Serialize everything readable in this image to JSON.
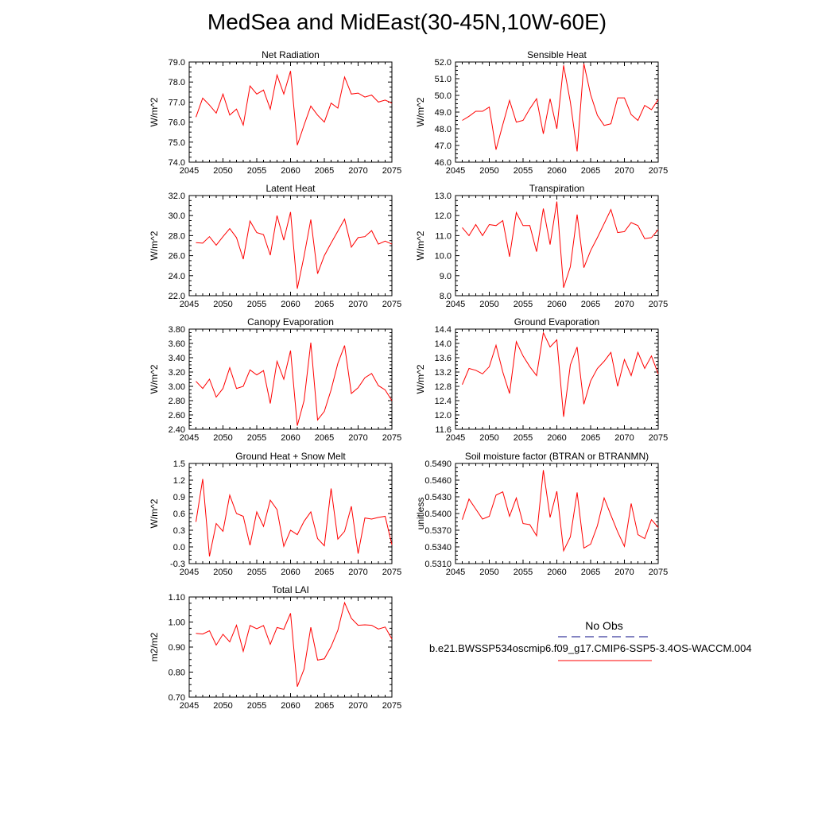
{
  "title": "MedSea and MidEast(30-45N,10W-60E)",
  "colors": {
    "series": "#ff0000",
    "obs": "#3b3b9e",
    "axis": "#000000"
  },
  "legend": {
    "obs_label": "No Obs",
    "case_label": "b.e21.BWSSP534oscmip6.f09_g17.CMIP6-SSP5-3.4OS-WACCM.004"
  },
  "chart_data": [
    {
      "type": "line",
      "title": "Net Radiation",
      "ylabel": "W/m^2",
      "xlim": [
        2045,
        2075
      ],
      "ylim": [
        74.0,
        79.0
      ],
      "xticks": [
        2045,
        2050,
        2055,
        2060,
        2065,
        2070,
        2075
      ],
      "yticks": [
        "74.0",
        "75.0",
        "76.0",
        "77.0",
        "78.0",
        "79.0"
      ],
      "x": [
        2046,
        2047,
        2048,
        2049,
        2050,
        2051,
        2052,
        2053,
        2054,
        2055,
        2056,
        2057,
        2058,
        2059,
        2060,
        2061,
        2062,
        2063,
        2064,
        2065,
        2066,
        2067,
        2068,
        2069,
        2070,
        2071,
        2072,
        2073,
        2074,
        2075
      ],
      "values": [
        76.25,
        77.2,
        76.85,
        76.45,
        77.4,
        76.35,
        76.65,
        75.85,
        77.8,
        77.4,
        77.6,
        76.65,
        78.35,
        77.4,
        78.55,
        74.85,
        75.85,
        76.8,
        76.35,
        76.0,
        76.95,
        76.7,
        78.25,
        77.4,
        77.45,
        77.25,
        77.35,
        77.0,
        77.1,
        76.95
      ]
    },
    {
      "type": "line",
      "title": "Sensible Heat",
      "ylabel": "W/m^2",
      "xlim": [
        2045,
        2075
      ],
      "ylim": [
        46.0,
        52.0
      ],
      "xticks": [
        2045,
        2050,
        2055,
        2060,
        2065,
        2070,
        2075
      ],
      "yticks": [
        "46.0",
        "47.0",
        "48.0",
        "49.0",
        "50.0",
        "51.0",
        "52.0"
      ],
      "x": [
        2046,
        2047,
        2048,
        2049,
        2050,
        2051,
        2052,
        2053,
        2054,
        2055,
        2056,
        2057,
        2058,
        2059,
        2060,
        2061,
        2062,
        2063,
        2064,
        2065,
        2066,
        2067,
        2068,
        2069,
        2070,
        2071,
        2072,
        2073,
        2074,
        2075
      ],
      "values": [
        48.5,
        48.75,
        49.05,
        49.05,
        49.3,
        46.75,
        48.25,
        49.7,
        48.4,
        48.5,
        49.2,
        49.8,
        47.7,
        49.8,
        48.0,
        51.8,
        49.6,
        46.65,
        51.9,
        50.05,
        48.8,
        48.2,
        48.3,
        49.85,
        49.85,
        48.85,
        48.5,
        49.4,
        49.15,
        49.75
      ]
    },
    {
      "type": "line",
      "title": "Latent Heat",
      "ylabel": "W/m^2",
      "xlim": [
        2045,
        2075
      ],
      "ylim": [
        22.0,
        32.0
      ],
      "xticks": [
        2045,
        2050,
        2055,
        2060,
        2065,
        2070,
        2075
      ],
      "yticks": [
        "22.0",
        "24.0",
        "26.0",
        "28.0",
        "30.0",
        "32.0"
      ],
      "x": [
        2046,
        2047,
        2048,
        2049,
        2050,
        2051,
        2052,
        2053,
        2054,
        2055,
        2056,
        2057,
        2058,
        2059,
        2060,
        2061,
        2062,
        2063,
        2064,
        2065,
        2066,
        2067,
        2068,
        2069,
        2070,
        2071,
        2072,
        2073,
        2074,
        2075
      ],
      "values": [
        27.3,
        27.25,
        27.9,
        27.05,
        27.9,
        28.7,
        27.8,
        25.65,
        29.45,
        28.3,
        28.1,
        26.05,
        30.0,
        27.55,
        30.35,
        22.7,
        25.95,
        29.6,
        24.2,
        26.0,
        27.25,
        28.45,
        29.65,
        26.85,
        27.8,
        27.9,
        28.5,
        27.15,
        27.45,
        27.15
      ]
    },
    {
      "type": "line",
      "title": "Transpiration",
      "ylabel": "W/m^2",
      "xlim": [
        2045,
        2075
      ],
      "ylim": [
        8.0,
        13.0
      ],
      "xticks": [
        2045,
        2050,
        2055,
        2060,
        2065,
        2070,
        2075
      ],
      "yticks": [
        "8.0",
        "9.0",
        "10.0",
        "11.0",
        "12.0",
        "13.0"
      ],
      "x": [
        2046,
        2047,
        2048,
        2049,
        2050,
        2051,
        2052,
        2053,
        2054,
        2055,
        2056,
        2057,
        2058,
        2059,
        2060,
        2061,
        2062,
        2063,
        2064,
        2065,
        2066,
        2067,
        2068,
        2069,
        2070,
        2071,
        2072,
        2073,
        2074,
        2075
      ],
      "values": [
        11.4,
        11.0,
        11.55,
        11.0,
        11.55,
        11.5,
        11.75,
        9.95,
        12.15,
        11.5,
        11.5,
        10.2,
        12.35,
        10.55,
        12.7,
        8.4,
        9.45,
        12.05,
        9.4,
        10.25,
        10.9,
        11.6,
        12.3,
        11.15,
        11.2,
        11.65,
        11.5,
        10.85,
        10.9,
        11.3
      ]
    },
    {
      "type": "line",
      "title": "Canopy Evaporation",
      "ylabel": "W/m^2",
      "xlim": [
        2045,
        2075
      ],
      "ylim": [
        2.4,
        3.8
      ],
      "xticks": [
        2045,
        2050,
        2055,
        2060,
        2065,
        2070,
        2075
      ],
      "yticks": [
        "2.40",
        "2.60",
        "2.80",
        "3.00",
        "3.20",
        "3.40",
        "3.60",
        "3.80"
      ],
      "x": [
        2046,
        2047,
        2048,
        2049,
        2050,
        2051,
        2052,
        2053,
        2054,
        2055,
        2056,
        2057,
        2058,
        2059,
        2060,
        2061,
        2062,
        2063,
        2064,
        2065,
        2066,
        2067,
        2068,
        2069,
        2070,
        2071,
        2072,
        2073,
        2074,
        2075
      ],
      "values": [
        3.07,
        2.97,
        3.1,
        2.85,
        2.97,
        3.26,
        2.97,
        3.0,
        3.23,
        3.16,
        3.22,
        2.76,
        3.35,
        3.1,
        3.5,
        2.45,
        2.8,
        3.61,
        2.53,
        2.65,
        2.95,
        3.32,
        3.57,
        2.9,
        2.98,
        3.12,
        3.18,
        3.01,
        2.95,
        2.8
      ]
    },
    {
      "type": "line",
      "title": "Ground Evaporation",
      "ylabel": "W/m^2",
      "xlim": [
        2045,
        2075
      ],
      "ylim": [
        11.6,
        14.4
      ],
      "xticks": [
        2045,
        2050,
        2055,
        2060,
        2065,
        2070,
        2075
      ],
      "yticks": [
        "11.6",
        "12.0",
        "12.4",
        "12.8",
        "13.2",
        "13.6",
        "14.0",
        "14.4"
      ],
      "x": [
        2046,
        2047,
        2048,
        2049,
        2050,
        2051,
        2052,
        2053,
        2054,
        2055,
        2056,
        2057,
        2058,
        2059,
        2060,
        2061,
        2062,
        2063,
        2064,
        2065,
        2066,
        2067,
        2068,
        2069,
        2070,
        2071,
        2072,
        2073,
        2074,
        2075
      ],
      "values": [
        12.85,
        13.3,
        13.25,
        13.15,
        13.35,
        13.95,
        13.2,
        12.6,
        14.05,
        13.65,
        13.35,
        13.1,
        14.3,
        13.9,
        14.1,
        11.95,
        13.4,
        13.9,
        12.3,
        12.95,
        13.3,
        13.5,
        13.75,
        12.8,
        13.55,
        13.1,
        13.75,
        13.3,
        13.65,
        13.15
      ]
    },
    {
      "type": "line",
      "title": "Ground Heat + Snow Melt",
      "ylabel": "W/m^2",
      "xlim": [
        2045,
        2075
      ],
      "ylim": [
        -0.3,
        1.5
      ],
      "xticks": [
        2045,
        2050,
        2055,
        2060,
        2065,
        2070,
        2075
      ],
      "yticks": [
        "-0.3",
        "0.0",
        "0.3",
        "0.6",
        "0.9",
        "1.2",
        "1.5"
      ],
      "x": [
        2046,
        2047,
        2048,
        2049,
        2050,
        2051,
        2052,
        2053,
        2054,
        2055,
        2056,
        2057,
        2058,
        2059,
        2060,
        2061,
        2062,
        2063,
        2064,
        2065,
        2066,
        2067,
        2068,
        2069,
        2070,
        2071,
        2072,
        2073,
        2074,
        2075
      ],
      "values": [
        0.45,
        1.22,
        -0.17,
        0.42,
        0.28,
        0.93,
        0.6,
        0.55,
        0.03,
        0.63,
        0.37,
        0.84,
        0.67,
        0.01,
        0.3,
        0.22,
        0.46,
        0.63,
        0.15,
        0.02,
        1.05,
        0.14,
        0.28,
        0.73,
        -0.12,
        0.52,
        0.5,
        0.53,
        0.55,
        0.04
      ]
    },
    {
      "type": "line",
      "title": "Soil moisture factor (BTRAN or BTRANMN)",
      "ylabel": "unitless",
      "xlim": [
        2045,
        2075
      ],
      "ylim": [
        0.531,
        0.549
      ],
      "xticks": [
        2045,
        2050,
        2055,
        2060,
        2065,
        2070,
        2075
      ],
      "yticks": [
        "0.5310",
        "0.5340",
        "0.5370",
        "0.5400",
        "0.5430",
        "0.5460",
        "0.5490"
      ],
      "x": [
        2046,
        2047,
        2048,
        2049,
        2050,
        2051,
        2052,
        2053,
        2054,
        2055,
        2056,
        2057,
        2058,
        2059,
        2060,
        2061,
        2062,
        2063,
        2064,
        2065,
        2066,
        2067,
        2068,
        2069,
        2070,
        2071,
        2072,
        2073,
        2074,
        2075
      ],
      "values": [
        0.5389,
        0.5426,
        0.5408,
        0.539,
        0.5395,
        0.5433,
        0.5439,
        0.5395,
        0.5428,
        0.5382,
        0.538,
        0.536,
        0.5478,
        0.5393,
        0.544,
        0.5333,
        0.5358,
        0.5438,
        0.5338,
        0.5345,
        0.5378,
        0.5428,
        0.5397,
        0.5367,
        0.5341,
        0.5418,
        0.5362,
        0.5355,
        0.5389,
        0.5375
      ]
    },
    {
      "type": "line",
      "title": "Total LAI",
      "ylabel": "m2/m2",
      "xlim": [
        2045,
        2075
      ],
      "ylim": [
        0.7,
        1.1
      ],
      "xticks": [
        2045,
        2050,
        2055,
        2060,
        2065,
        2070,
        2075
      ],
      "yticks": [
        "0.70",
        "0.80",
        "0.90",
        "1.00",
        "1.10"
      ],
      "x": [
        2046,
        2047,
        2048,
        2049,
        2050,
        2051,
        2052,
        2053,
        2054,
        2055,
        2056,
        2057,
        2058,
        2059,
        2060,
        2061,
        2062,
        2063,
        2064,
        2065,
        2066,
        2067,
        2068,
        2069,
        2070,
        2071,
        2072,
        2073,
        2074,
        2075
      ],
      "values": [
        0.955,
        0.952,
        0.965,
        0.908,
        0.951,
        0.921,
        0.987,
        0.883,
        0.986,
        0.973,
        0.986,
        0.911,
        0.978,
        0.971,
        1.035,
        0.742,
        0.812,
        0.979,
        0.848,
        0.853,
        0.902,
        0.967,
        1.077,
        1.015,
        0.987,
        0.989,
        0.987,
        0.972,
        0.98,
        0.932
      ]
    }
  ]
}
